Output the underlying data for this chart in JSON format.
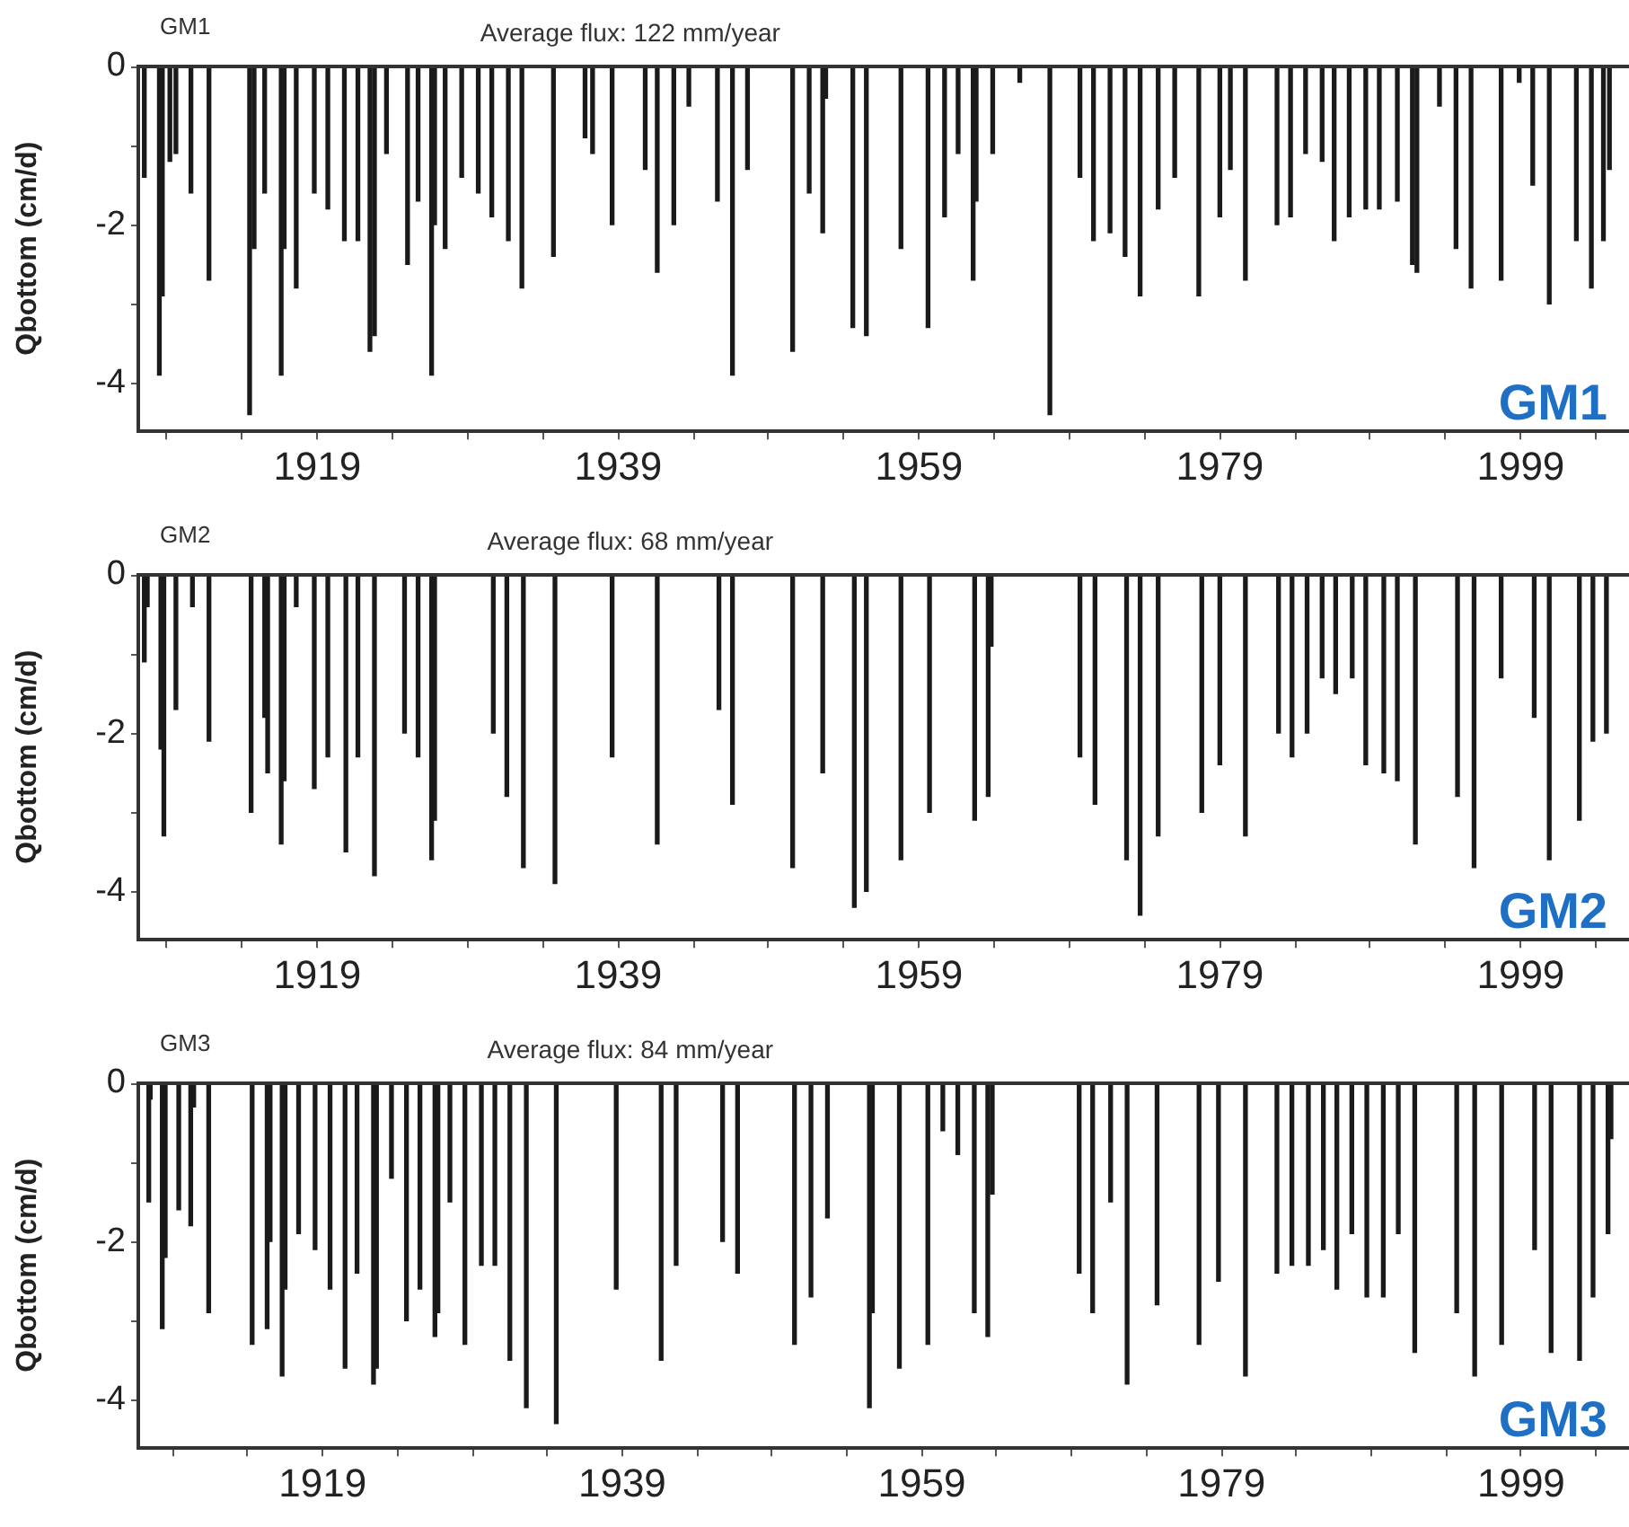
{
  "chart_data": [
    {
      "type": "bar",
      "title": "GM1",
      "subtitle": "Average flux: 122 mm/year",
      "annotations": [
        "GM1"
      ],
      "ylabel": "Qbottom (cm/d)",
      "color": "#1a1a1a",
      "x": [
        1907.5,
        1908.5,
        1908.7,
        1909.2,
        1909.6,
        1910.6,
        1911.8,
        1914.5,
        1914.8,
        1915.5,
        1916.6,
        1916.8,
        1917.6,
        1918.8,
        1919.7,
        1920.8,
        1921.7,
        1922.5,
        1922.8,
        1923.6,
        1925.0,
        1925.7,
        1926.6,
        1926.8,
        1927.5,
        1928.6,
        1929.7,
        1930.6,
        1931.7,
        1932.6,
        1934.7,
        1936.8,
        1937.3,
        1938.6,
        1940.8,
        1941.6,
        1942.7,
        1943.7,
        1945.6,
        1946.6,
        1947.6,
        1950.6,
        1951.7,
        1952.6,
        1952.8,
        1954.6,
        1955.5,
        1957.8,
        1959.6,
        1960.7,
        1961.6,
        1962.6,
        1962.8,
        1963.6,
        1963.9,
        1965.7,
        1967.7,
        1969.7,
        1970.6,
        1971.7,
        1972.7,
        1973.7,
        1974.9,
        1976.0,
        1977.6,
        1979.0,
        1979.7,
        1980.7,
        1982.8,
        1983.7,
        1984.7,
        1985.8,
        1986.6,
        1987.6,
        1988.7,
        1989.6,
        1990.8,
        1991.8,
        1992.1,
        1993.6,
        1994.7,
        1995.7,
        1997.7,
        1998.9,
        1999.8,
        2000.9,
        2002.7,
        2003.7,
        2004.5,
        2004.9
      ],
      "values": [
        -1.4,
        -3.9,
        -2.9,
        -1.2,
        -1.1,
        -1.6,
        -2.7,
        -4.4,
        -2.3,
        -1.6,
        -3.9,
        -2.3,
        -2.8,
        -1.6,
        -1.8,
        -2.2,
        -2.2,
        -3.6,
        -3.4,
        -1.1,
        -2.5,
        -1.7,
        -3.9,
        -2.0,
        -2.3,
        -1.4,
        -1.6,
        -1.9,
        -2.2,
        -2.8,
        -2.4,
        -0.9,
        -1.1,
        -2.0,
        -1.3,
        -2.6,
        -2.0,
        -0.5,
        -1.7,
        -3.9,
        -1.3,
        -3.6,
        -1.6,
        -2.1,
        -0.4,
        -3.3,
        -3.4,
        -2.3,
        -3.3,
        -1.9,
        -1.1,
        -2.7,
        -1.7,
        null,
        -1.1,
        -0.2,
        -4.4,
        -1.4,
        -2.2,
        -2.1,
        -2.4,
        -2.9,
        -1.8,
        -1.4,
        -2.9,
        -1.9,
        -1.3,
        -2.7,
        -2.0,
        -1.9,
        -1.1,
        -1.2,
        -2.2,
        -1.9,
        -1.8,
        -1.8,
        -1.7,
        -2.5,
        -2.6,
        -0.5,
        -2.3,
        -2.8,
        -2.7,
        -0.2,
        -1.5,
        -3.0,
        -2.2,
        -2.8,
        -2.2,
        -1.3
      ],
      "xlim": [
        1907.1,
        2006.2
      ],
      "ylim": [
        -4.6,
        0
      ],
      "xticks": [
        {
          "value": 1909,
          "label": null
        },
        {
          "value": 1914,
          "label": null
        },
        1919,
        {
          "value": 1924,
          "label": null
        },
        {
          "value": 1929,
          "label": null
        },
        {
          "value": 1934,
          "label": null
        },
        1939,
        {
          "value": 1944,
          "label": null
        },
        {
          "value": 1949,
          "label": null
        },
        {
          "value": 1954,
          "label": null
        },
        1959,
        {
          "value": 1964,
          "label": null
        },
        {
          "value": 1969,
          "label": null
        },
        {
          "value": 1974,
          "label": null
        },
        1979,
        {
          "value": 1984,
          "label": null
        },
        {
          "value": 1989,
          "label": null
        },
        {
          "value": 1994,
          "label": null
        },
        1999,
        {
          "value": 2004,
          "label": null
        }
      ],
      "yticks": [
        {
          "value": -4,
          "label": "-4"
        },
        {
          "value": -3,
          "label": null
        },
        {
          "value": -2,
          "label": "-2"
        },
        {
          "value": -1,
          "label": null
        },
        {
          "value": 0,
          "label": "0"
        }
      ]
    },
    {
      "type": "bar",
      "title": "GM2",
      "subtitle": "Average flux: 68 mm/year",
      "annotations": [
        "GM2"
      ],
      "ylabel": "Qbottom (cm/d)",
      "color": "#1a1a1a",
      "x": [
        1907.5,
        1907.7,
        1908.6,
        1908.8,
        1909.6,
        1910.7,
        1911.8,
        1914.6,
        1915.5,
        1915.7,
        1916.6,
        1916.8,
        1917.6,
        1918.8,
        1919.7,
        1920.9,
        1921.7,
        1922.8,
        1924.8,
        1925.7,
        1926.6,
        1926.8,
        1930.7,
        1931.6,
        1932.7,
        1934.8,
        1938.6,
        1941.6,
        1945.7,
        1946.6,
        1950.6,
        1952.6,
        1954.7,
        1955.5,
        1957.8,
        1959.7,
        1962.7,
        1963.6,
        1963.8,
        1967.7,
        1969.7,
        1970.7,
        1972.8,
        1973.7,
        1974.9,
        1977.8,
        1979.0,
        1980.7,
        1982.9,
        1983.8,
        1984.8,
        1985.8,
        1986.7,
        1987.8,
        1988.7,
        1989.9,
        1990.8,
        1992.0,
        1994.8,
        1995.9,
        1997.7,
        1999.9,
        2000.9,
        2002.9,
        2003.8,
        2004.7
      ],
      "values": [
        -1.1,
        -0.4,
        -2.2,
        -3.3,
        -1.7,
        -0.4,
        -2.1,
        -3.0,
        -1.8,
        -2.5,
        -3.4,
        -2.6,
        -0.4,
        -2.7,
        -2.3,
        -3.5,
        -2.3,
        -3.8,
        -2.0,
        -2.3,
        -3.6,
        -3.1,
        -2.0,
        -2.8,
        -3.7,
        -3.9,
        -2.3,
        -3.4,
        -1.7,
        -2.9,
        -3.7,
        -2.5,
        -4.2,
        -4.0,
        -3.6,
        -3.0,
        -3.1,
        -2.8,
        -0.9,
        null,
        -2.3,
        -2.9,
        -3.6,
        -4.3,
        -3.3,
        -3.0,
        -2.4,
        -3.3,
        -2.0,
        -2.3,
        -2.0,
        -1.3,
        -1.5,
        -1.3,
        -2.4,
        -2.5,
        -2.6,
        -3.4,
        -2.8,
        -3.7,
        -1.3,
        -1.8,
        -3.6,
        -3.1,
        -2.1,
        -2.0
      ],
      "xlim": [
        1907.1,
        2006.2
      ],
      "ylim": [
        -4.6,
        0
      ],
      "xticks": [
        {
          "value": 1909,
          "label": null
        },
        {
          "value": 1914,
          "label": null
        },
        1919,
        {
          "value": 1924,
          "label": null
        },
        {
          "value": 1929,
          "label": null
        },
        {
          "value": 1934,
          "label": null
        },
        1939,
        {
          "value": 1944,
          "label": null
        },
        {
          "value": 1949,
          "label": null
        },
        {
          "value": 1954,
          "label": null
        },
        1959,
        {
          "value": 1964,
          "label": null
        },
        {
          "value": 1969,
          "label": null
        },
        {
          "value": 1974,
          "label": null
        },
        1979,
        {
          "value": 1984,
          "label": null
        },
        {
          "value": 1989,
          "label": null
        },
        {
          "value": 1994,
          "label": null
        },
        1999,
        {
          "value": 2004,
          "label": null
        }
      ],
      "yticks": [
        {
          "value": -4,
          "label": "-4"
        },
        {
          "value": -3,
          "label": null
        },
        {
          "value": -2,
          "label": "-2"
        },
        {
          "value": -1,
          "label": null
        },
        {
          "value": 0,
          "label": "0"
        }
      ]
    },
    {
      "type": "bar",
      "title": "GM3",
      "subtitle": "Average flux: 84 mm/year",
      "annotations": [
        "GM3"
      ],
      "ylabel": "Qbottom (cm/d)",
      "color": "#1a1a1a",
      "x": [
        1907.4,
        1907.5,
        1908.3,
        1908.5,
        1909.4,
        1910.2,
        1910.4,
        1911.4,
        1914.3,
        1915.3,
        1915.5,
        1916.3,
        1916.5,
        1917.4,
        1918.5,
        1919.5,
        1920.5,
        1921.3,
        1922.4,
        1922.6,
        1923.6,
        1924.6,
        1925.5,
        1926.5,
        1926.7,
        1927.5,
        1928.5,
        1929.6,
        1930.5,
        1931.5,
        1932.6,
        1934.6,
        1938.6,
        1941.6,
        1942.6,
        1945.7,
        1946.7,
        1950.5,
        1951.6,
        1952.7,
        1954.6,
        1955.5,
        1955.7,
        1957.5,
        1959.4,
        1960.4,
        1961.4,
        1962.5,
        1963.4,
        1963.7,
        1967.6,
        1969.5,
        1970.4,
        1971.6,
        1972.7,
        1973.6,
        1974.7,
        1977.5,
        1978.8,
        1980.6,
        1982.7,
        1983.7,
        1984.8,
        1985.8,
        1986.7,
        1987.7,
        1988.7,
        1989.8,
        1990.8,
        1991.9,
        1994.7,
        1995.9,
        1997.7,
        1999.9,
        2001.0,
        2002.9,
        2003.8,
        2004.8,
        2005.0
      ],
      "values": [
        -1.5,
        -0.2,
        -3.1,
        -2.2,
        -1.6,
        -1.8,
        -0.3,
        -2.9,
        -3.3,
        -3.1,
        -2.0,
        -3.7,
        -2.6,
        -1.9,
        -2.1,
        -2.6,
        -3.6,
        -2.4,
        -3.8,
        -3.6,
        -1.2,
        -3.0,
        -2.6,
        -3.2,
        -2.9,
        -1.5,
        -3.3,
        -2.3,
        -2.3,
        -3.5,
        -4.1,
        -4.3,
        -2.6,
        -3.5,
        -2.3,
        -2.0,
        -2.4,
        -3.3,
        -2.7,
        -1.7,
        null,
        -4.1,
        -2.9,
        -3.6,
        -3.3,
        -0.6,
        -0.9,
        -2.9,
        -3.2,
        -1.4,
        null,
        -2.4,
        -2.9,
        -1.5,
        -3.8,
        null,
        -2.8,
        -3.3,
        -2.5,
        -3.7,
        -2.4,
        -2.3,
        -2.3,
        -2.1,
        -2.6,
        -1.9,
        -2.7,
        -2.7,
        -1.9,
        -3.4,
        -2.9,
        -3.7,
        -3.3,
        -2.1,
        -3.4,
        -3.5,
        -2.7,
        -1.9,
        -0.7
      ],
      "xlim": [
        1906.7,
        2006.2
      ],
      "ylim": [
        -4.6,
        0
      ],
      "xticks": [
        {
          "value": 1909,
          "label": null
        },
        {
          "value": 1914,
          "label": null
        },
        1919,
        {
          "value": 1924,
          "label": null
        },
        {
          "value": 1929,
          "label": null
        },
        {
          "value": 1934,
          "label": null
        },
        1939,
        {
          "value": 1944,
          "label": null
        },
        {
          "value": 1949,
          "label": null
        },
        {
          "value": 1954,
          "label": null
        },
        1959,
        {
          "value": 1964,
          "label": null
        },
        {
          "value": 1969,
          "label": null
        },
        {
          "value": 1974,
          "label": null
        },
        1979,
        {
          "value": 1984,
          "label": null
        },
        {
          "value": 1989,
          "label": null
        },
        {
          "value": 1994,
          "label": null
        },
        1999,
        {
          "value": 2004,
          "label": null
        }
      ],
      "yticks": [
        {
          "value": -4,
          "label": "-4"
        },
        {
          "value": -3,
          "label": null
        },
        {
          "value": -2,
          "label": "-2"
        },
        {
          "value": -1,
          "label": null
        },
        {
          "value": 0,
          "label": "0"
        }
      ]
    }
  ]
}
